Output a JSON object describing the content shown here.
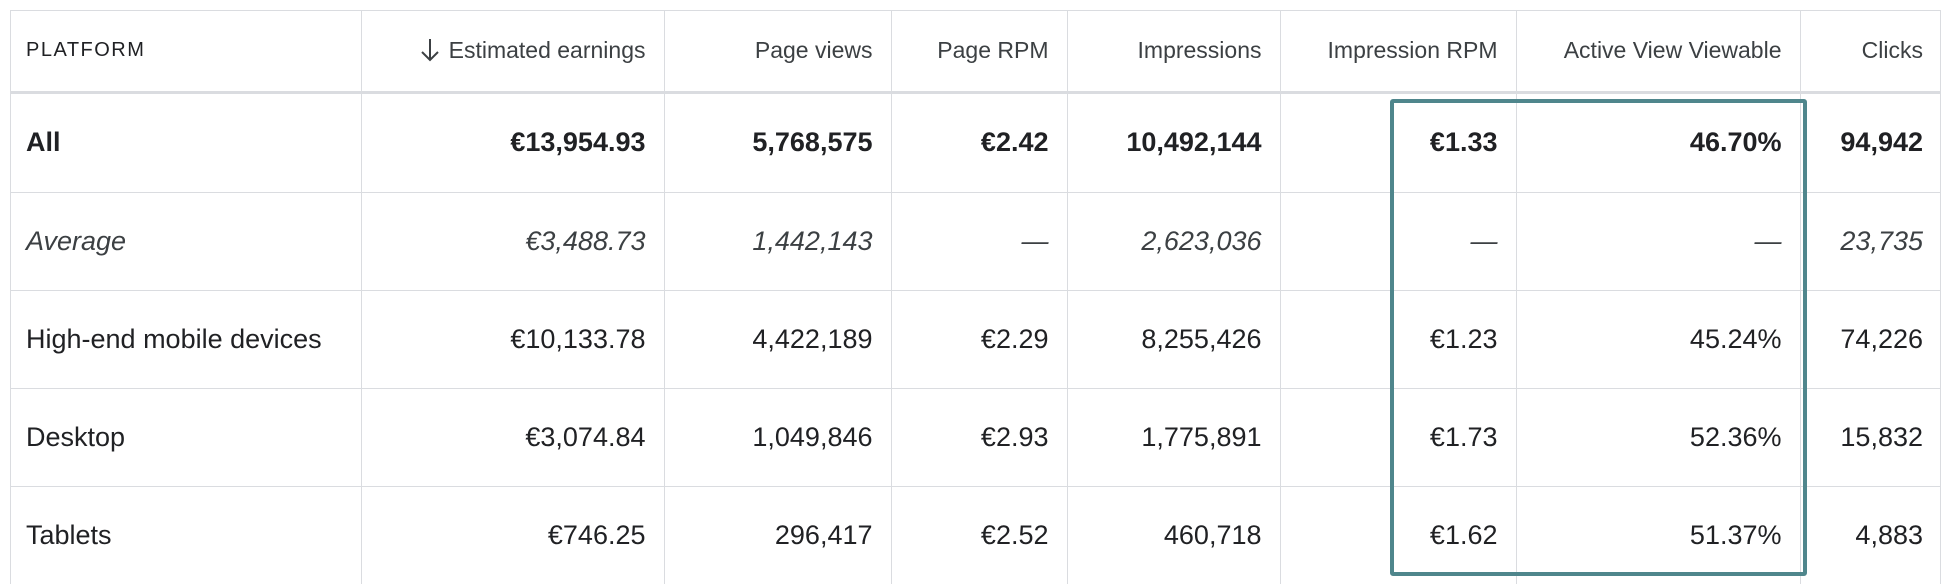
{
  "table": {
    "columns": [
      {
        "key": "platform",
        "label": "PLATFORM",
        "sorted": false
      },
      {
        "key": "estimated_earnings",
        "label": "Estimated earnings",
        "sorted": true,
        "sort_icon": "arrow-down-icon"
      },
      {
        "key": "page_views",
        "label": "Page views",
        "sorted": false
      },
      {
        "key": "page_rpm",
        "label": "Page RPM",
        "sorted": false
      },
      {
        "key": "impressions",
        "label": "Impressions",
        "sorted": false
      },
      {
        "key": "impression_rpm",
        "label": "Impression RPM",
        "sorted": false
      },
      {
        "key": "active_view_viewable",
        "label": "Active View Viewable",
        "sorted": false
      },
      {
        "key": "clicks",
        "label": "Clicks",
        "sorted": false
      }
    ],
    "rows": [
      {
        "type": "all",
        "cells": [
          "All",
          "€13,954.93",
          "5,768,575",
          "€2.42",
          "10,492,144",
          "€1.33",
          "46.70%",
          "94,942"
        ]
      },
      {
        "type": "average",
        "cells": [
          "Average",
          "€3,488.73",
          "1,442,143",
          "—",
          "2,623,036",
          "—",
          "—",
          "23,735"
        ]
      },
      {
        "type": "data",
        "cells": [
          "High-end mobile devices",
          "€10,133.78",
          "4,422,189",
          "€2.29",
          "8,255,426",
          "€1.23",
          "45.24%",
          "74,226"
        ]
      },
      {
        "type": "data",
        "cells": [
          "Desktop",
          "€3,074.84",
          "1,049,846",
          "€2.93",
          "1,775,891",
          "€1.73",
          "52.36%",
          "15,832"
        ]
      },
      {
        "type": "data",
        "cells": [
          "Tablets",
          "€746.25",
          "296,417",
          "€2.52",
          "460,718",
          "€1.62",
          "51.37%",
          "4,883"
        ]
      }
    ]
  },
  "highlight": {
    "columns": [
      "Impression RPM",
      "Active View Viewable"
    ],
    "color": "#4f868c"
  },
  "colors": {
    "text": "#202124",
    "grid": "#dadce0"
  }
}
